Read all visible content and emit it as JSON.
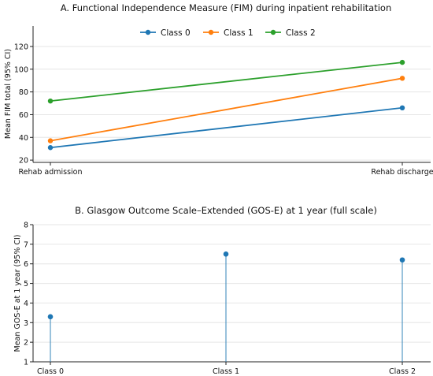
{
  "chart_data": [
    {
      "type": "line",
      "title": "A. Functional Independence Measure (FIM) during inpatient rehabilitation",
      "xlabel": "",
      "ylabel": "Mean FIM total (95% CI)",
      "categories": [
        "Rehab admission",
        "Rehab discharge"
      ],
      "yticks": [
        20,
        40,
        60,
        80,
        100,
        120
      ],
      "ylim": [
        18,
        138
      ],
      "grid": true,
      "legend": "top-center",
      "series": [
        {
          "name": "Class 0",
          "color": "#1f77b4",
          "values": [
            31,
            66
          ]
        },
        {
          "name": "Class 1",
          "color": "#ff7f0e",
          "values": [
            37,
            92
          ]
        },
        {
          "name": "Class 2",
          "color": "#2ca02c",
          "values": [
            72,
            106
          ]
        }
      ]
    },
    {
      "type": "lollipop",
      "title": "B. Glasgow Outcome Scale–Extended (GOS-E) at 1 year (full scale)",
      "xlabel": "",
      "ylabel": "Mean GOS-E at 1 year (95% CI)",
      "categories": [
        "Class 0",
        "Class 1",
        "Class 2"
      ],
      "values": [
        3.3,
        6.5,
        6.2
      ],
      "color": "#1f77b4",
      "yticks": [
        1,
        2,
        3,
        4,
        5,
        6,
        7,
        8
      ],
      "ylim": [
        1,
        8
      ],
      "grid": true
    }
  ]
}
